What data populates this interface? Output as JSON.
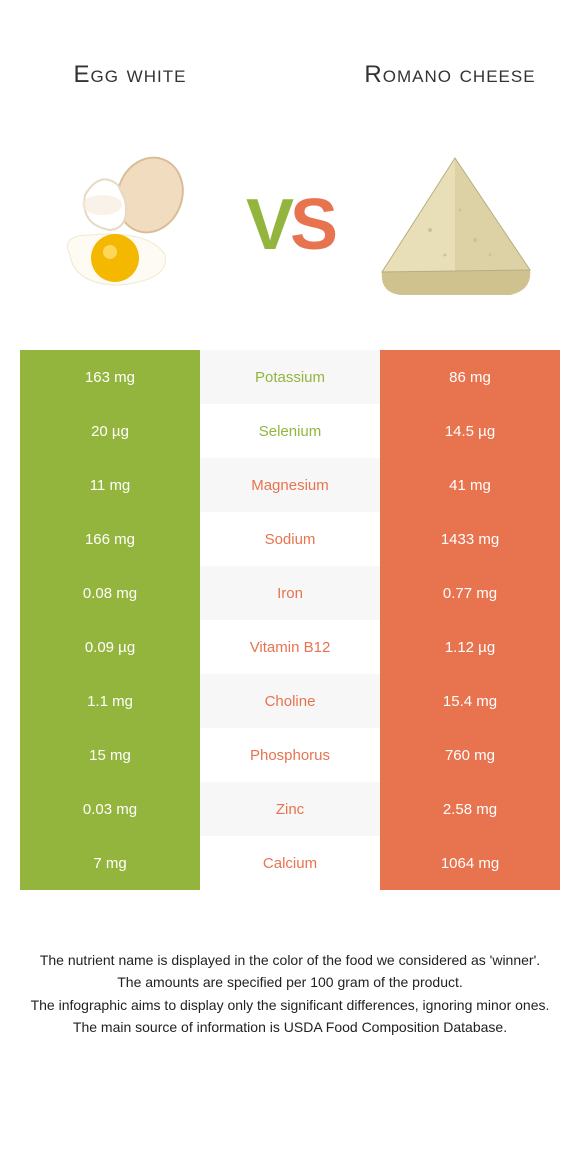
{
  "colors": {
    "green": "#94b53d",
    "orange": "#e8734f",
    "row_alt": "#f7f7f7",
    "row_base": "#ffffff",
    "text": "#333333"
  },
  "foods": {
    "left": {
      "title": "Egg white"
    },
    "right": {
      "title": "Romano cheese"
    }
  },
  "vs_label": {
    "v": "V",
    "s": "S"
  },
  "rows": [
    {
      "left": "163 mg",
      "label": "Potassium",
      "right": "86 mg",
      "winner": "left"
    },
    {
      "left": "20 µg",
      "label": "Selenium",
      "right": "14.5 µg",
      "winner": "left"
    },
    {
      "left": "11 mg",
      "label": "Magnesium",
      "right": "41 mg",
      "winner": "right"
    },
    {
      "left": "166 mg",
      "label": "Sodium",
      "right": "1433 mg",
      "winner": "right"
    },
    {
      "left": "0.08 mg",
      "label": "Iron",
      "right": "0.77 mg",
      "winner": "right"
    },
    {
      "left": "0.09 µg",
      "label": "Vitamin B12",
      "right": "1.12 µg",
      "winner": "right"
    },
    {
      "left": "1.1 mg",
      "label": "Choline",
      "right": "15.4 mg",
      "winner": "right"
    },
    {
      "left": "15 mg",
      "label": "Phosphorus",
      "right": "760 mg",
      "winner": "right"
    },
    {
      "left": "0.03 mg",
      "label": "Zinc",
      "right": "2.58 mg",
      "winner": "right"
    },
    {
      "left": "7 mg",
      "label": "Calcium",
      "right": "1064 mg",
      "winner": "right"
    }
  ],
  "footer": [
    "The nutrient name is displayed in the color of the food we considered as 'winner'.",
    "The amounts are specified per 100 gram of the product.",
    "The infographic aims to display only the significant differences, ignoring minor ones.",
    "The main source of information is USDA Food Composition Database."
  ]
}
